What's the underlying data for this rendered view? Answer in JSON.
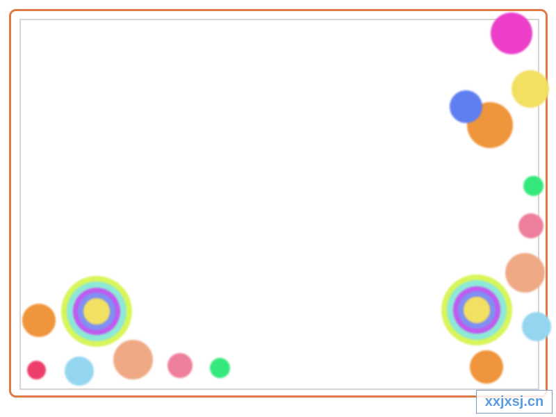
{
  "colors": {
    "outer_frame": "#e07a45",
    "inner_frame": "#d9d4d0",
    "background": "#ffffff",
    "magenta": "#ec3ec9",
    "yellow": "#f2e063",
    "blue": "#5f7ef0",
    "orange": "#ef953b",
    "green": "#35e87c",
    "pink": "#ee7f9c",
    "peach": "#efa985",
    "light_blue": "#94d6f0",
    "red_pink": "#ee3f6a",
    "ring_lime": "#d8f55a",
    "ring_cyan": "#8ee8d8",
    "ring_violet": "#c05bef",
    "ring_blue": "#7f8ff2",
    "watermark_text": "#5a9be0"
  },
  "decorations": {
    "dots": [
      {
        "name": "magenta-dot",
        "color": "magenta"
      },
      {
        "name": "yellow-dot",
        "color": "yellow"
      },
      {
        "name": "orange-dot-top-right",
        "color": "orange"
      },
      {
        "name": "blue-dot",
        "color": "blue"
      },
      {
        "name": "green-dot-right",
        "color": "green"
      },
      {
        "name": "pink-dot-right",
        "color": "pink"
      },
      {
        "name": "peach-dot-right",
        "color": "peach"
      },
      {
        "name": "light-blue-dot-right",
        "color": "light_blue"
      },
      {
        "name": "orange-dot-bottom-right",
        "color": "orange"
      },
      {
        "name": "orange-dot-left",
        "color": "orange"
      },
      {
        "name": "red-pink-dot",
        "color": "red_pink"
      },
      {
        "name": "light-blue-dot-bottom",
        "color": "light_blue"
      },
      {
        "name": "peach-dot-bottom",
        "color": "peach"
      },
      {
        "name": "pink-dot-bottom",
        "color": "pink"
      },
      {
        "name": "green-dot-bottom",
        "color": "green"
      }
    ],
    "targets": [
      {
        "name": "concentric-circle-left"
      },
      {
        "name": "concentric-circle-right"
      }
    ]
  },
  "watermark": {
    "text": "xxjxsj.cn"
  }
}
